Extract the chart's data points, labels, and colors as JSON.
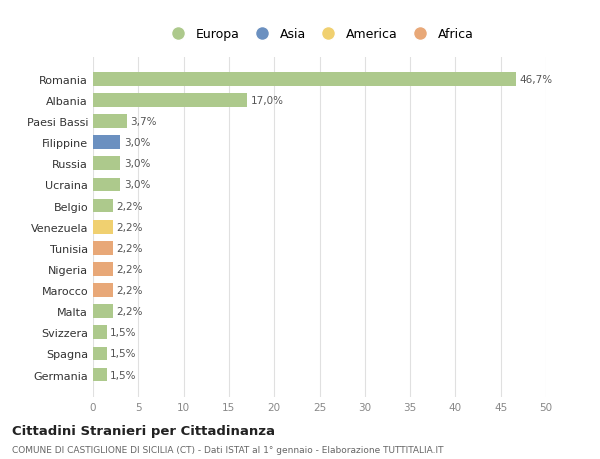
{
  "countries": [
    "Romania",
    "Albania",
    "Paesi Bassi",
    "Filippine",
    "Russia",
    "Ucraina",
    "Belgio",
    "Venezuela",
    "Tunisia",
    "Nigeria",
    "Marocco",
    "Malta",
    "Svizzera",
    "Spagna",
    "Germania"
  ],
  "values": [
    46.7,
    17.0,
    3.7,
    3.0,
    3.0,
    3.0,
    2.2,
    2.2,
    2.2,
    2.2,
    2.2,
    2.2,
    1.5,
    1.5,
    1.5
  ],
  "labels": [
    "46,7%",
    "17,0%",
    "3,7%",
    "3,0%",
    "3,0%",
    "3,0%",
    "2,2%",
    "2,2%",
    "2,2%",
    "2,2%",
    "2,2%",
    "2,2%",
    "1,5%",
    "1,5%",
    "1,5%"
  ],
  "colors": [
    "#adc98c",
    "#adc98c",
    "#adc98c",
    "#6b90c0",
    "#adc98c",
    "#adc98c",
    "#adc98c",
    "#f0d070",
    "#e8a878",
    "#e8a878",
    "#e8a878",
    "#adc98c",
    "#adc98c",
    "#adc98c",
    "#adc98c"
  ],
  "legend_labels": [
    "Europa",
    "Asia",
    "America",
    "Africa"
  ],
  "legend_colors": [
    "#adc98c",
    "#6b90c0",
    "#f0d070",
    "#e8a878"
  ],
  "xlim": [
    0,
    50
  ],
  "xticks": [
    0,
    5,
    10,
    15,
    20,
    25,
    30,
    35,
    40,
    45,
    50
  ],
  "title": "Cittadini Stranieri per Cittadinanza",
  "subtitle": "COMUNE DI CASTIGLIONE DI SICILIA (CT) - Dati ISTAT al 1° gennaio - Elaborazione TUTTITALIA.IT",
  "bg_color": "#ffffff",
  "grid_color": "#e0e0e0"
}
